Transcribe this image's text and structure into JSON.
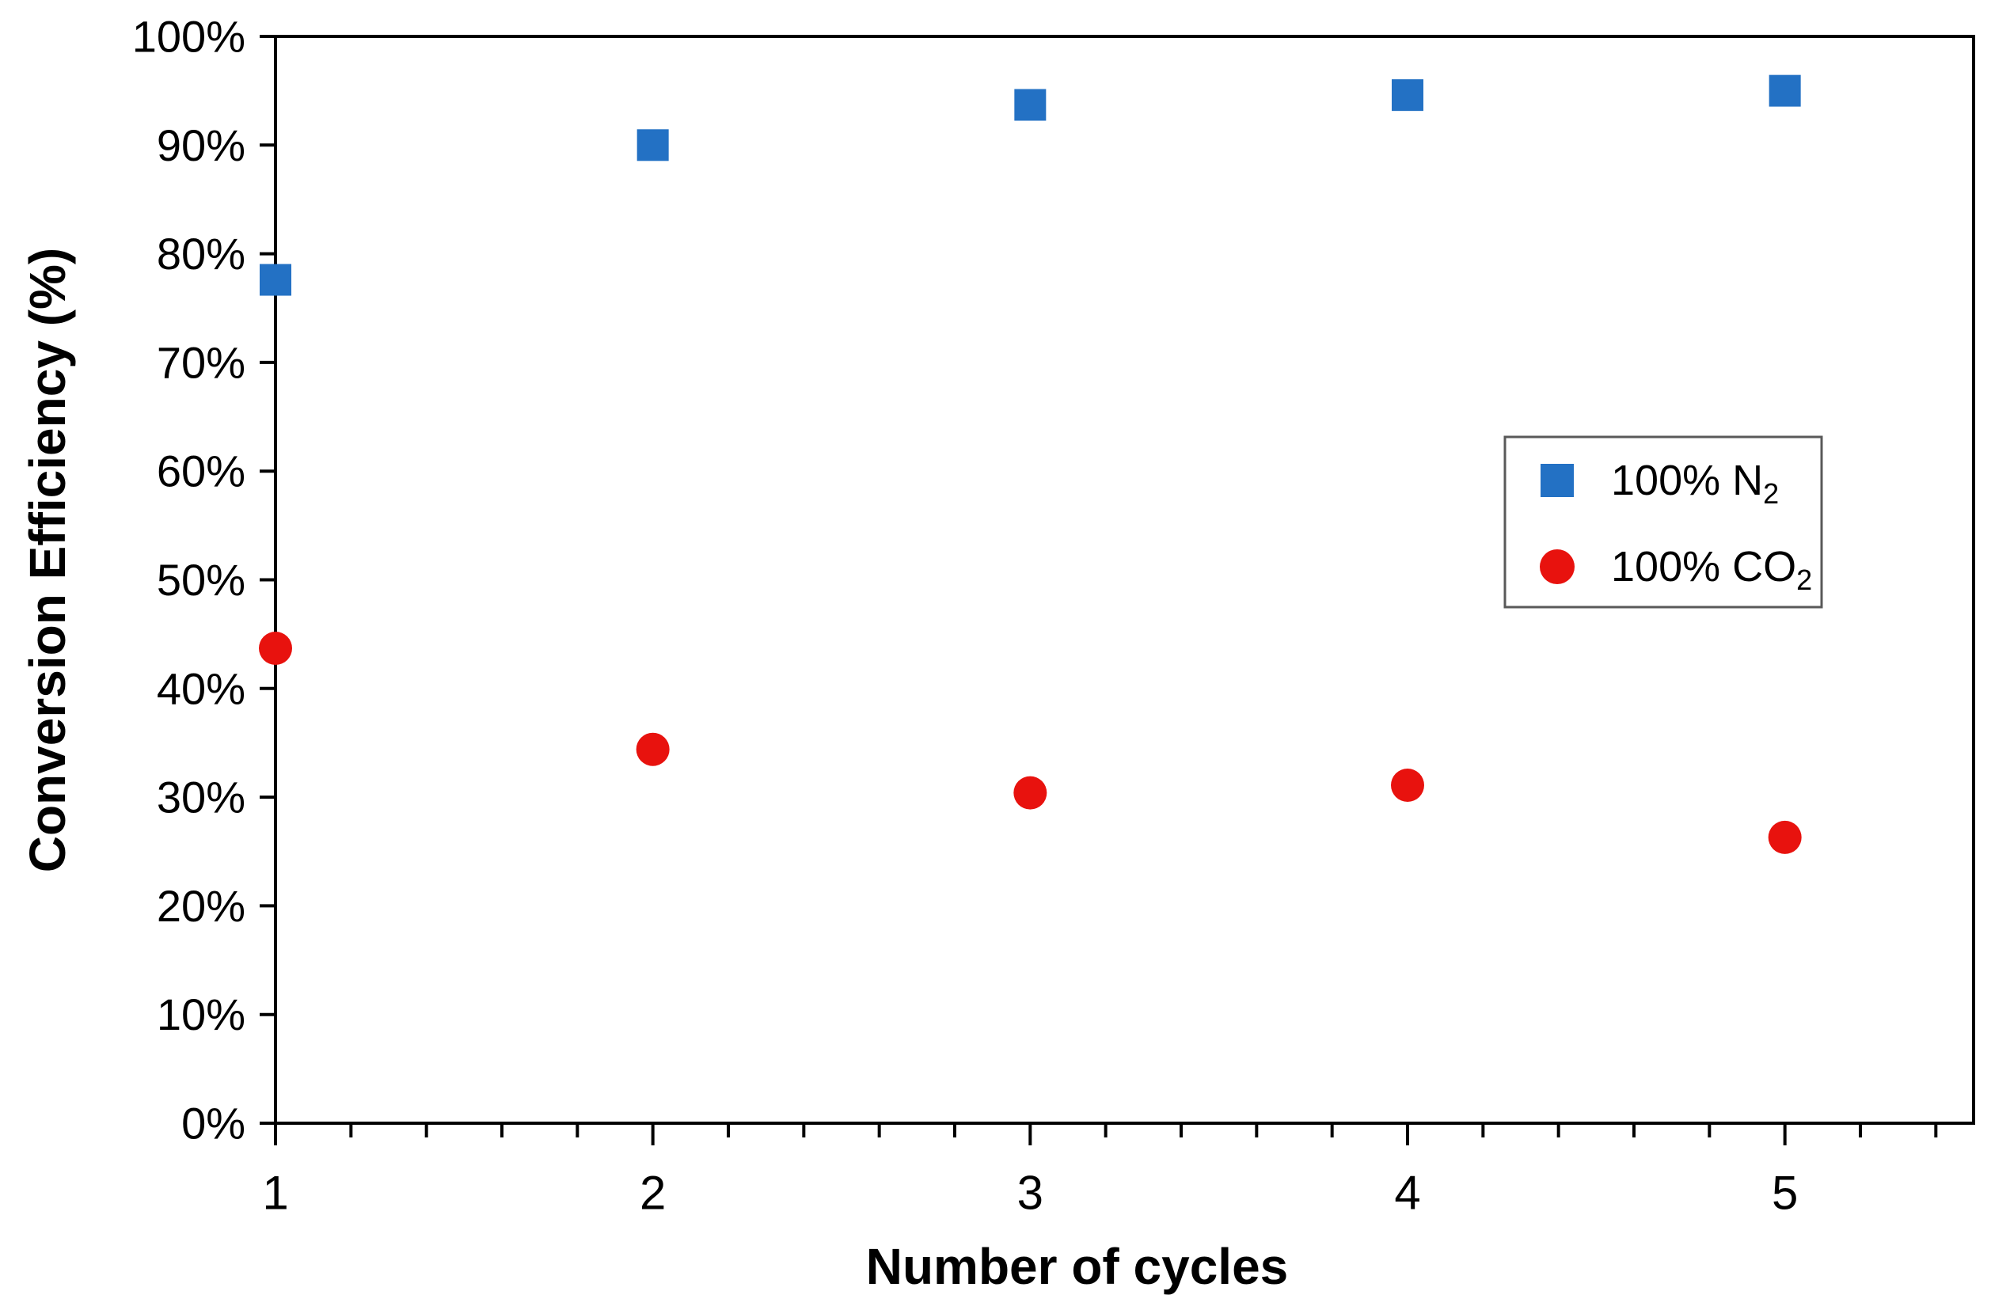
{
  "chart_data": {
    "type": "scatter",
    "title": "",
    "xlabel": "Number of cycles",
    "ylabel": "Conversion Efficiency (%)",
    "xlim": [
      1,
      5.5
    ],
    "ylim": [
      0,
      100
    ],
    "x": [
      1,
      2,
      3,
      4,
      5
    ],
    "x_major_ticks": [
      1,
      2,
      3,
      4,
      5
    ],
    "x_tick_labels": [
      "1",
      "2",
      "3",
      "4",
      "5"
    ],
    "x_minor_tick_step": 0.2,
    "y_tick_step": 10,
    "y_tick_labels": [
      "0%",
      "10%",
      "20%",
      "30%",
      "40%",
      "50%",
      "60%",
      "70%",
      "80%",
      "90%",
      "100%"
    ],
    "grid": false,
    "frame": true,
    "legend_position": "inside-upper-right",
    "series": [
      {
        "name": "100% N2",
        "legend_main": "100% N",
        "legend_sub": "2",
        "marker": "square",
        "color": "#2371C4",
        "values": [
          77.6,
          90.0,
          93.7,
          94.6,
          95.0
        ]
      },
      {
        "name": "100% CO2",
        "legend_main": "100% CO",
        "legend_sub": "2",
        "marker": "circle",
        "color": "#E8120E",
        "values": [
          43.7,
          34.4,
          30.4,
          31.1,
          26.3
        ]
      }
    ]
  },
  "colors": {
    "axis": "#000000",
    "text": "#000000",
    "legend_border": "#595959",
    "background": "#FFFFFF",
    "n2_blue": "#2371C4",
    "co2_red": "#E8120E"
  }
}
